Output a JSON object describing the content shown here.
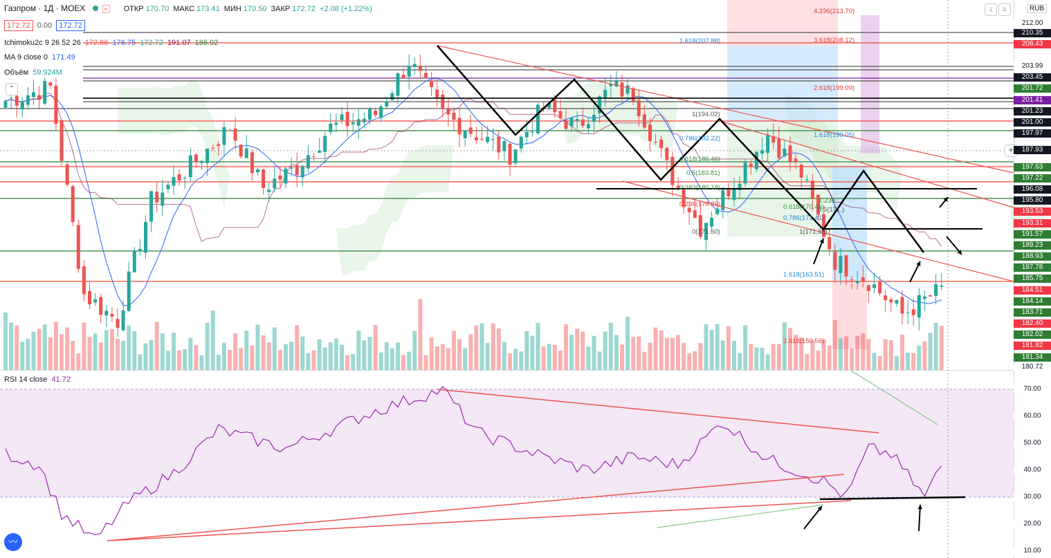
{
  "header": {
    "symbol": "Газпром · 1Д · MOEX",
    "ohlc_open_label": "ОТКР",
    "ohlc_open": "170.70",
    "ohlc_high_label": "МАКС",
    "ohlc_high": "173.41",
    "ohlc_low_label": "МИН",
    "ohlc_low": "170.50",
    "ohlc_close_label": "ЗАКР",
    "ohlc_close": "172.72",
    "change": "+2.08 (+1.22%)",
    "bid": "172.72",
    "spread": "0.00",
    "ask": "172.72",
    "currency": "RUB"
  },
  "indicators": {
    "ichimoku_label": "Ichimoku2c 9 26 52 26",
    "ichimoku_values": [
      "172.86",
      "176.75",
      "172.72",
      "191.07",
      "186.92"
    ],
    "ma_label": "MA 9 close 0",
    "ma_value": "171.49",
    "volume_label": "Объём",
    "volume_value": "59.924M",
    "rsi_label": "RSI 14 close",
    "rsi_value": "41.72"
  },
  "colors": {
    "up": "#26a69a",
    "down": "#ef5350",
    "ma": "#2962ff",
    "tenkan": "#2962ff",
    "kijun": "#880e4f",
    "ichi_cloud_up": "#a5d6a7",
    "rsi": "#9c27b0",
    "rsi_band": "#e1bee7",
    "fib_red": "#f44336",
    "trend": "#000000"
  },
  "price_axis": {
    "labels": [
      {
        "v": "212.00",
        "t": "plain"
      },
      {
        "v": "210.35",
        "t": "dark"
      },
      {
        "v": "208.43",
        "t": "red"
      },
      {
        "v": "203.99",
        "t": "plain"
      },
      {
        "v": "203.45",
        "t": "dark"
      },
      {
        "v": "201.72",
        "t": "green"
      },
      {
        "v": "201.41",
        "t": "purple"
      },
      {
        "v": "201.23",
        "t": "dark"
      },
      {
        "v": "201.00",
        "t": "dark"
      },
      {
        "v": "197.97",
        "t": "dark"
      },
      {
        "v": "187.93",
        "t": "dark"
      },
      {
        "v": "197.63",
        "t": "green"
      },
      {
        "v": "197.22",
        "t": "green"
      },
      {
        "v": "196.08",
        "t": "dark"
      },
      {
        "v": "195.80",
        "t": "dark"
      },
      {
        "v": "193.53",
        "t": "red"
      },
      {
        "v": "193.31",
        "t": "red"
      },
      {
        "v": "191.57",
        "t": "green"
      },
      {
        "v": "189.23",
        "t": "green"
      },
      {
        "v": "188.93",
        "t": "green"
      },
      {
        "v": "187.78",
        "t": "green"
      },
      {
        "v": "185.75",
        "t": "green"
      },
      {
        "v": "184.51",
        "t": "red"
      },
      {
        "v": "184.14",
        "t": "green"
      },
      {
        "v": "183.71",
        "t": "green"
      },
      {
        "v": "182.40",
        "t": "red"
      },
      {
        "v": "182.02",
        "t": "green"
      },
      {
        "v": "181.92",
        "t": "red"
      },
      {
        "v": "181.34",
        "t": "green"
      },
      {
        "v": "180.72",
        "t": "plain"
      }
    ],
    "rsi_ticks": [
      "70.00",
      "60.00",
      "50.00",
      "40.00",
      "30.00",
      "20.00",
      "10.00"
    ]
  },
  "fib_labels": [
    "4.236(213.70)",
    "3.618(208.12)",
    "2.618(199.09)",
    "1.618(190.05)",
    "1.618(207.88)",
    "1(194.02)",
    "0.786(192.22)",
    "0.618(185.46)",
    "0.5(183.81)",
    "0.382(180.18)",
    "0.236(176.89)",
    "0(171.60)",
    "0.618(170.46)",
    "0.786(171.41)",
    "1(171.35)",
    "1.618(163.51)",
    "2.618(150.56)",
    "1.236",
    "0.5(171.)"
  ],
  "chart_data": {
    "type": "candlestick",
    "title": "Газпром · 1Д · MOEX",
    "ylim": [
      160,
      213
    ],
    "last_close": 172.72,
    "candles_summary": "daily OHLC series; last bar O 170.70 H 173.41 L 170.50 C 172.72",
    "rsi": {
      "name": "RSI 14 close",
      "last": 41.72,
      "ylim": [
        10,
        72
      ],
      "band": [
        30,
        70
      ]
    },
    "ma": {
      "name": "MA 9 close 0",
      "last": 171.49
    },
    "volume": {
      "name": "Объём",
      "last": "59.924M"
    }
  }
}
